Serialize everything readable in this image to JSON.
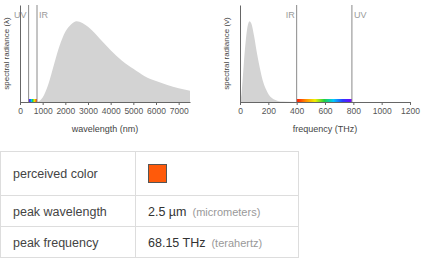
{
  "chart_data": [
    {
      "type": "area",
      "x_label": "wavelength (nm)",
      "y_label": "spectral radiance (λ)",
      "x": [
        0,
        500,
        750,
        1000,
        1250,
        1500,
        1750,
        2000,
        2250,
        2500,
        3000,
        3500,
        4000,
        4500,
        5000,
        5500,
        6000,
        6500,
        7000,
        7500
      ],
      "values": [
        0,
        0,
        0.004,
        0.057,
        0.22,
        0.465,
        0.7,
        0.87,
        0.96,
        1.0,
        0.93,
        0.79,
        0.64,
        0.51,
        0.41,
        0.32,
        0.26,
        0.21,
        0.17,
        0.14
      ],
      "color": "#d3d3d3",
      "xlim": [
        0,
        7500
      ],
      "xticks": [
        0,
        1000,
        2000,
        3000,
        4000,
        5000,
        6000,
        7000
      ],
      "ylim": [
        0,
        1.2
      ],
      "tick_labels": "x",
      "annotations": [
        {
          "label": "UV",
          "x": 380
        },
        {
          "label": "IR",
          "x": 750
        }
      ]
    },
    {
      "type": "area",
      "x_label": "frequency (THz)",
      "y_label": "spectral radiance (ν)",
      "x": [
        0,
        10,
        20,
        30,
        40,
        50,
        60,
        68,
        80,
        100,
        120,
        140,
        160,
        180,
        200,
        250,
        300,
        400,
        1200
      ],
      "values": [
        0,
        0.097,
        0.31,
        0.55,
        0.75,
        0.9,
        0.98,
        1.0,
        0.97,
        0.81,
        0.6,
        0.42,
        0.27,
        0.17,
        0.1,
        0.025,
        0.005,
        0,
        0
      ],
      "color": "#d3d3d3",
      "xlim": [
        0,
        1200
      ],
      "xticks": [
        0,
        200,
        400,
        600,
        800,
        1000,
        1200
      ],
      "ylim": [
        0,
        1.2
      ],
      "tick_labels": "x",
      "annotations": [
        {
          "label": "UV",
          "x": 790
        },
        {
          "label": "IR",
          "x": 400
        }
      ]
    }
  ],
  "table": {
    "rows": [
      {
        "label": "perceived color",
        "color": "#ff5a0a"
      },
      {
        "label": "peak wavelength",
        "value": "2.5 µm",
        "note": "(micrometers)"
      },
      {
        "label": "peak frequency",
        "value": "68.15 THz",
        "note": "(terahertz)"
      }
    ]
  }
}
